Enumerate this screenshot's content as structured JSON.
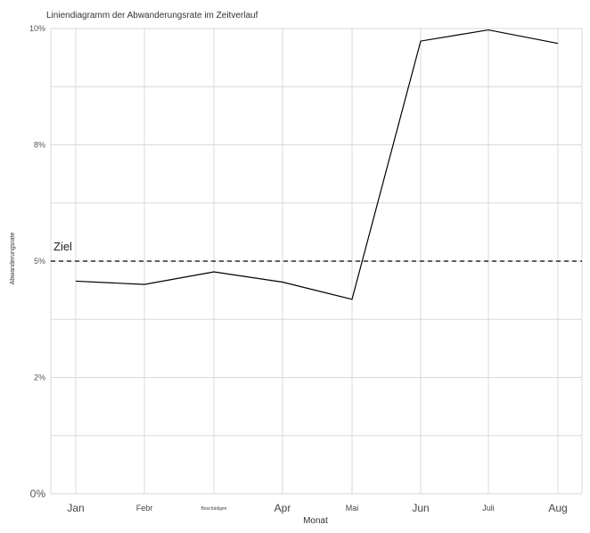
{
  "chart_data": {
    "type": "line",
    "title": "Liniendiagramm der Abwanderungsrate im Zeitverlauf",
    "xlabel": "Monat",
    "ylabel": "Abwanderungsrate",
    "categories": [
      "Jan",
      "Febr",
      "Beschädigen",
      "Apr",
      "Mai",
      "Jun",
      "Juli",
      "Aug"
    ],
    "values": [
      0.0457,
      0.045,
      0.0477,
      0.0455,
      0.0418,
      0.0973,
      0.0997,
      0.0968
    ],
    "ylim": [
      0,
      0.1
    ],
    "yticks": [
      {
        "value": 0,
        "label": "0%"
      },
      {
        "value": 0.025,
        "label": "2%"
      },
      {
        "value": 0.05,
        "label": "5%"
      },
      {
        "value": 0.075,
        "label": "8%"
      },
      {
        "value": 0.1,
        "label": "10%"
      }
    ],
    "reference_line": {
      "value": 0.05,
      "label": "Ziel",
      "style": "dashed"
    },
    "grid": true,
    "colors": {
      "line": "#000000",
      "grid": "#d9d9d9"
    }
  }
}
